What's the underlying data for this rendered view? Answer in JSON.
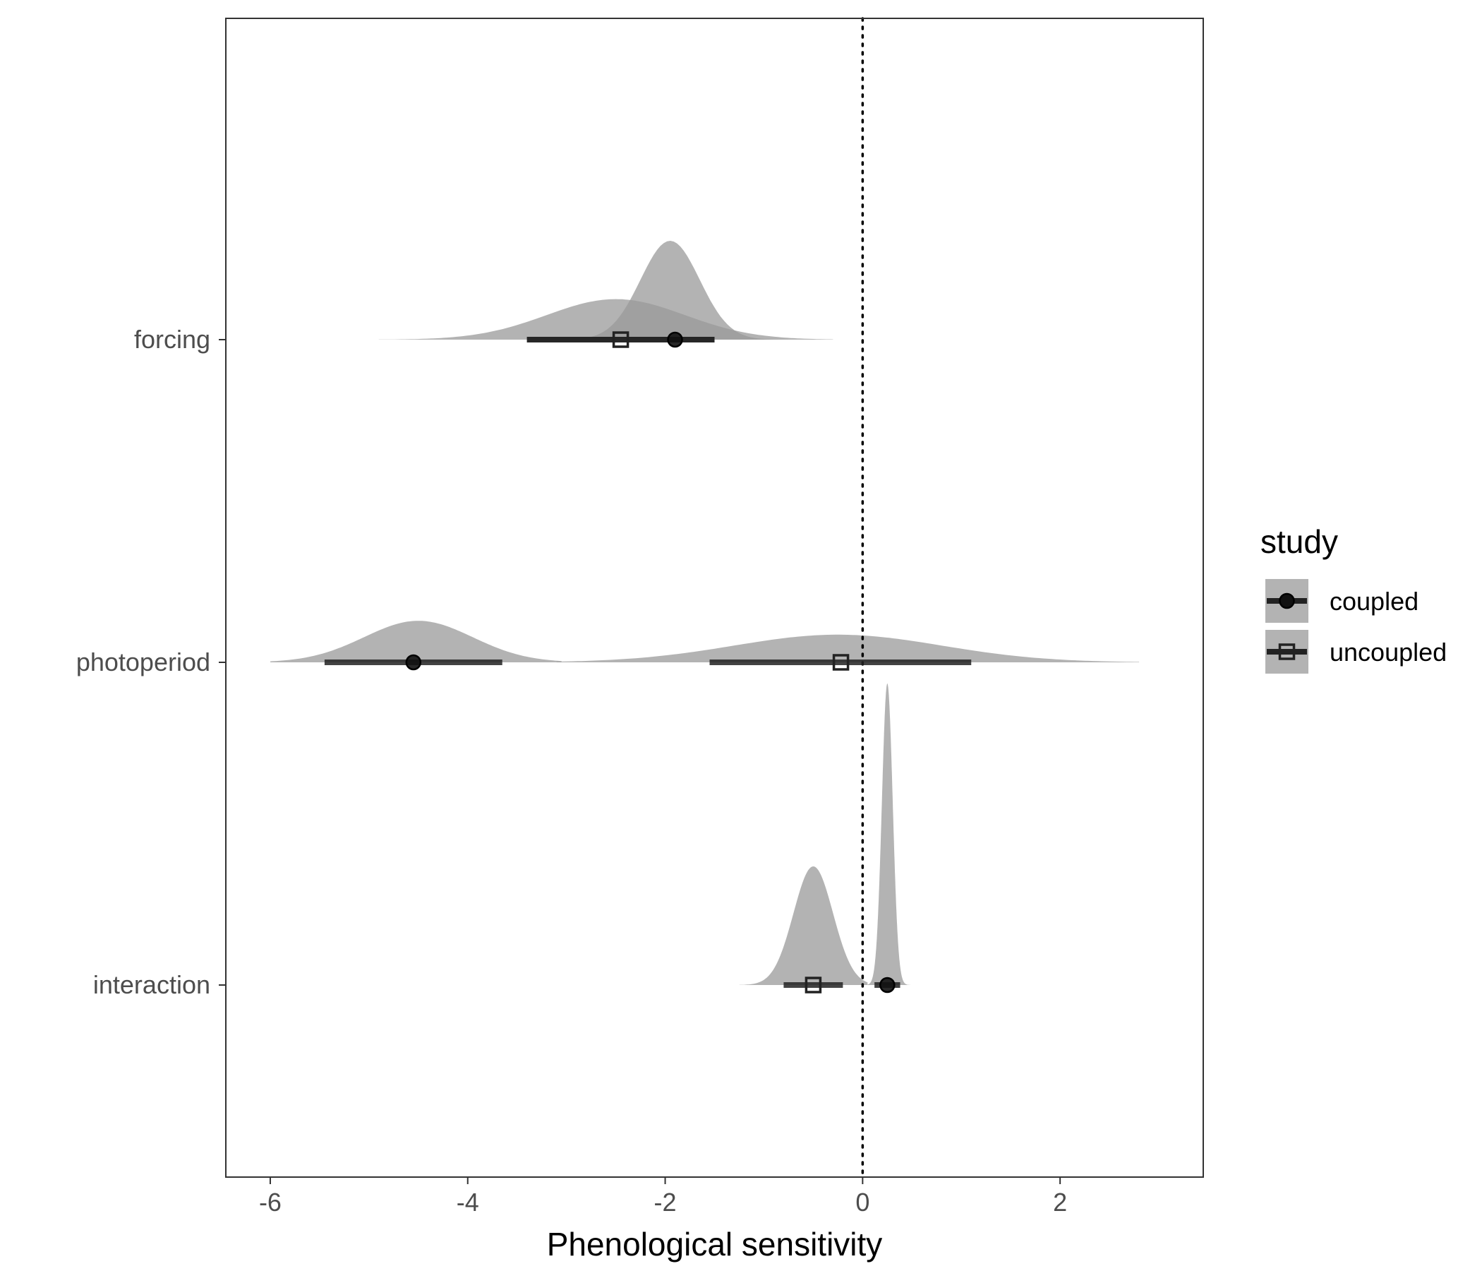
{
  "chart_data": {
    "type": "halfeye-density",
    "xlabel": "Phenological sensitivity",
    "ylabel": "",
    "xlim": [
      -6.45,
      3.45
    ],
    "x_ticks": [
      -6,
      -4,
      -2,
      0,
      2
    ],
    "x_tick_labels": [
      "-6",
      "-4",
      "-2",
      "0",
      "2"
    ],
    "categories": [
      "forcing",
      "photoperiod",
      "interaction"
    ],
    "reference_line": {
      "x": 0,
      "style": "dotted"
    },
    "grid": false,
    "legend": {
      "title": "study",
      "placement": "right",
      "entries": [
        {
          "label": "coupled",
          "shape": "filled-circle"
        },
        {
          "label": "uncoupled",
          "shape": "open-square"
        }
      ]
    },
    "colors": {
      "density_fill": "#999999",
      "interval": "#222222",
      "point": "#111111",
      "panel_border": "#333333"
    },
    "series": [
      {
        "name": "coupled",
        "data": [
          {
            "category": "forcing",
            "point": -1.9,
            "interval": [
              -3.4,
              -1.5
            ],
            "density_range": [
              -5.0,
              -0.25
            ],
            "mode": -1.95,
            "relative_height": 1.0,
            "spread": 0.3
          },
          {
            "category": "photoperiod",
            "point": -4.55,
            "interval": [
              -5.45,
              -3.65
            ],
            "density_range": [
              -6.0,
              -3.05
            ],
            "mode": -4.5,
            "relative_height": 0.42,
            "spread": 0.55
          },
          {
            "category": "interaction",
            "point": 0.25,
            "interval": [
              0.12,
              0.38
            ],
            "density_range": [
              0.05,
              0.5
            ],
            "mode": 0.25,
            "relative_height": 3.05,
            "spread": 0.055
          }
        ]
      },
      {
        "name": "uncoupled",
        "data": [
          {
            "category": "forcing",
            "point": -2.45,
            "interval": [
              -3.4,
              -1.5
            ],
            "density_range": [
              -4.9,
              -0.3
            ],
            "mode": -2.5,
            "relative_height": 0.41,
            "spread": 0.7
          },
          {
            "category": "photoperiod",
            "point": -0.22,
            "interval": [
              -1.55,
              1.1
            ],
            "density_range": [
              -3.1,
              2.8
            ],
            "mode": -0.25,
            "relative_height": 0.28,
            "spread": 1.05
          },
          {
            "category": "interaction",
            "point": -0.5,
            "interval": [
              -0.8,
              -0.2
            ],
            "density_range": [
              -1.25,
              0.05
            ],
            "mode": -0.5,
            "relative_height": 1.2,
            "spread": 0.2
          }
        ]
      }
    ]
  }
}
